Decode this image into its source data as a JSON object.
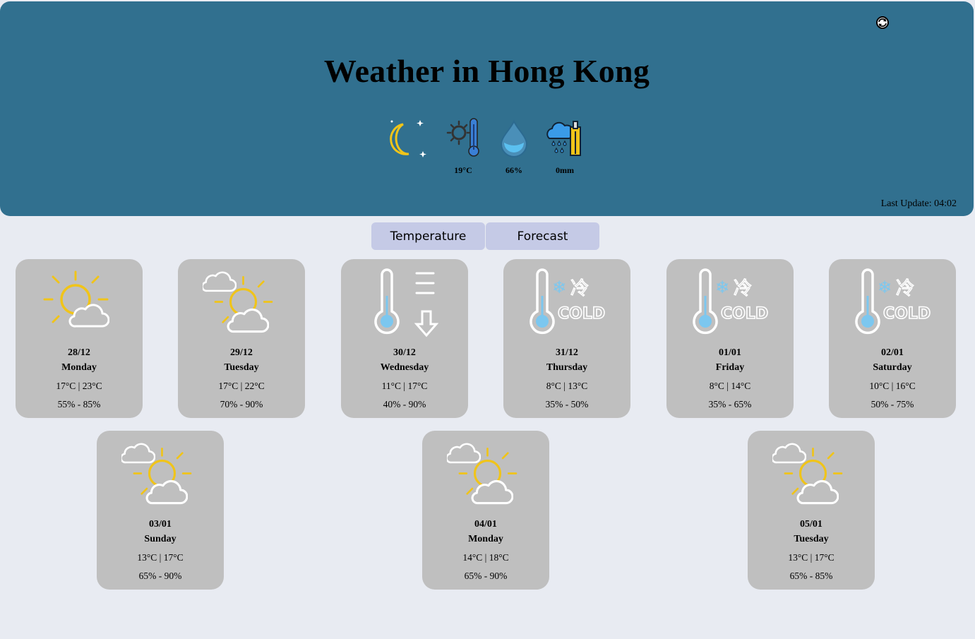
{
  "header": {
    "title": "Weather in Hong Kong",
    "last_update": "Last Update: 04:02",
    "current": {
      "condition_icon": "moon-stars-icon",
      "temperature": "19°C",
      "humidity": "66%",
      "rainfall": "0mm"
    }
  },
  "tabs": [
    {
      "label": "Temperature"
    },
    {
      "label": "Forecast"
    }
  ],
  "forecast": [
    {
      "date": "28/12",
      "day": "Monday",
      "temp": "17°C | 23°C",
      "humidity": "55% - 85%",
      "icon": "sun-cloud-icon"
    },
    {
      "date": "29/12",
      "day": "Tuesday",
      "temp": "17°C | 22°C",
      "humidity": "70% - 90%",
      "icon": "cloudy-sun-icon"
    },
    {
      "date": "30/12",
      "day": "Wednesday",
      "temp": "11°C | 17°C",
      "humidity": "40% - 90%",
      "icon": "temperature-drop-icon"
    },
    {
      "date": "31/12",
      "day": "Thursday",
      "temp": "8°C | 13°C",
      "humidity": "35% - 50%",
      "icon": "cold-icon"
    },
    {
      "date": "01/01",
      "day": "Friday",
      "temp": "8°C | 14°C",
      "humidity": "35% - 65%",
      "icon": "cold-icon"
    },
    {
      "date": "02/01",
      "day": "Saturday",
      "temp": "10°C | 16°C",
      "humidity": "50% - 75%",
      "icon": "cold-icon"
    },
    {
      "date": "03/01",
      "day": "Sunday",
      "temp": "13°C | 17°C",
      "humidity": "65% - 90%",
      "icon": "cloudy-sun-icon"
    },
    {
      "date": "04/01",
      "day": "Monday",
      "temp": "14°C | 18°C",
      "humidity": "65% - 90%",
      "icon": "cloudy-sun-icon"
    },
    {
      "date": "05/01",
      "day": "Tuesday",
      "temp": "13°C | 17°C",
      "humidity": "65% - 85%",
      "icon": "cloudy-sun-icon"
    }
  ],
  "colors": {
    "header_bg": "#31708f",
    "page_bg": "#e8ebf2",
    "card_bg": "#bfbfbf",
    "tab_bg": "#c5cae6",
    "sun": "#f0c419",
    "thermo_fill": "#7cc7ef"
  }
}
